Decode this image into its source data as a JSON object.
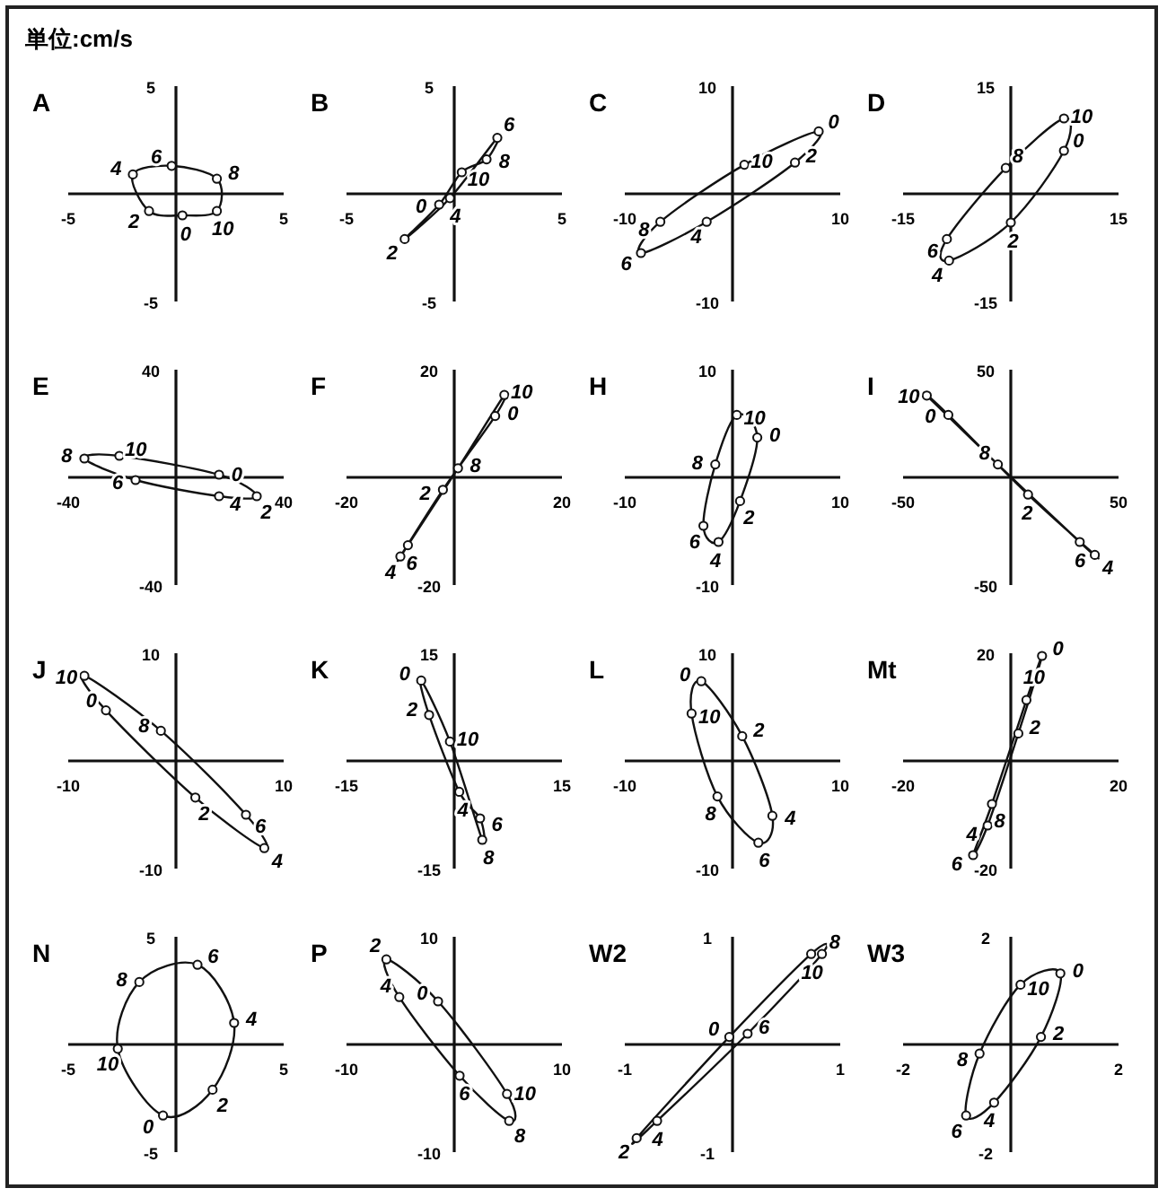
{
  "chart_data": [
    {
      "type": "scatter",
      "line_style": "solid",
      "title": "A",
      "xlim": [
        -5,
        5
      ],
      "ylim": [
        -5,
        5
      ],
      "xticks": [
        -5,
        5
      ],
      "yticks": [
        -5,
        5
      ],
      "marker": "circle",
      "x": [
        0.3,
        -1.25,
        -2,
        -0.2,
        1.9,
        1.9
      ],
      "values": [
        -1.0,
        -0.8,
        0.9,
        1.3,
        0.7,
        -0.8
      ],
      "annotations": [
        "単位:cm/s",
        {
          "text": "0",
          "x": 0.3,
          "y": -1.0
        },
        {
          "text": "2",
          "x": -1.25,
          "y": -0.8
        },
        {
          "text": "4",
          "x": -2,
          "y": 0.9
        },
        {
          "text": "6",
          "x": -0.2,
          "y": 1.3
        },
        {
          "text": "8",
          "x": 1.9,
          "y": 0.7
        },
        {
          "text": "10",
          "x": 1.9,
          "y": -0.8
        }
      ]
    },
    {
      "type": "scatter",
      "line_style": "solid",
      "title": "B",
      "xlim": [
        -5,
        5
      ],
      "ylim": [
        -5,
        5
      ],
      "xticks": [
        -5,
        5
      ],
      "yticks": [
        -5,
        5
      ],
      "marker": "circle",
      "x": [
        -0.7,
        -2.3,
        -0.2,
        2.0,
        1.5,
        0.35
      ],
      "values": [
        -0.5,
        -2.1,
        -0.2,
        2.6,
        1.6,
        1.0
      ],
      "annotations": [
        {
          "text": "0",
          "x": -0.7,
          "y": -0.5
        },
        {
          "text": "2",
          "x": -2.3,
          "y": -2.1
        },
        {
          "text": "4",
          "x": -0.2,
          "y": -0.2
        },
        {
          "text": "6",
          "x": 2.0,
          "y": 2.6
        },
        {
          "text": "8",
          "x": 1.5,
          "y": 1.6
        },
        {
          "text": "10",
          "x": 0.35,
          "y": 1.0
        }
      ]
    },
    {
      "type": "scatter",
      "line_style": "solid",
      "title": "C",
      "xlim": [
        -10,
        10
      ],
      "ylim": [
        -10,
        10
      ],
      "xticks": [
        -10,
        10
      ],
      "yticks": [
        -10,
        10
      ],
      "marker": "circle",
      "x": [
        8.0,
        5.8,
        -2.4,
        -8.5,
        -6.7,
        1.1
      ],
      "values": [
        5.8,
        2.9,
        -2.6,
        -5.5,
        -2.6,
        2.7
      ],
      "annotations": [
        {
          "text": "0",
          "x": 8.0,
          "y": 5.8
        },
        {
          "text": "2",
          "x": 5.8,
          "y": 2.9
        },
        {
          "text": "4",
          "x": -2.4,
          "y": -2.6
        },
        {
          "text": "6",
          "x": -8.5,
          "y": -5.5
        },
        {
          "text": "8",
          "x": -6.7,
          "y": -2.6
        },
        {
          "text": "10",
          "x": 1.1,
          "y": 2.7
        }
      ]
    },
    {
      "type": "scatter",
      "line_style": "solid",
      "title": "D",
      "xlim": [
        -15,
        15
      ],
      "ylim": [
        -15,
        15
      ],
      "xticks": [
        -15,
        15
      ],
      "yticks": [
        -15,
        15
      ],
      "marker": "circle",
      "x": [
        7.4,
        0,
        -8.6,
        -8.9,
        -0.7,
        7.4
      ],
      "values": [
        6.0,
        -4.0,
        -9.3,
        -6.3,
        3.6,
        10.5
      ],
      "annotations": [
        {
          "text": "0",
          "x": 7.4,
          "y": 6.0
        },
        {
          "text": "2",
          "x": 0,
          "y": -4.0
        },
        {
          "text": "4",
          "x": -8.6,
          "y": -9.3
        },
        {
          "text": "6",
          "x": -8.9,
          "y": -6.3
        },
        {
          "text": "8",
          "x": -0.7,
          "y": 3.6
        },
        {
          "text": "10",
          "x": 7.4,
          "y": 10.5
        }
      ]
    },
    {
      "type": "scatter",
      "line_style": "solid",
      "title": "E",
      "xlim": [
        -40,
        40
      ],
      "ylim": [
        -40,
        40
      ],
      "xticks": [
        -40,
        40
      ],
      "yticks": [
        -40,
        40
      ],
      "marker": "circle",
      "x": [
        16,
        30,
        16,
        -15,
        -34,
        -21
      ],
      "values": [
        1,
        -7,
        -7,
        -1,
        7,
        8
      ],
      "annotations": [
        {
          "text": "0",
          "x": 16,
          "y": 1
        },
        {
          "text": "2",
          "x": 30,
          "y": -7
        },
        {
          "text": "4",
          "x": 16,
          "y": -7
        },
        {
          "text": "6",
          "x": -15,
          "y": -1
        },
        {
          "text": "8",
          "x": -34,
          "y": 7
        },
        {
          "text": "10",
          "x": -21,
          "y": 8
        }
      ]
    },
    {
      "type": "scatter",
      "line_style": "solid",
      "title": "F",
      "xlim": [
        -20,
        20
      ],
      "ylim": [
        -20,
        20
      ],
      "xticks": [
        -20,
        20
      ],
      "yticks": [
        -20,
        20
      ],
      "marker": "circle",
      "x": [
        7.6,
        -2.1,
        -10,
        -8.6,
        0.7,
        9.3
      ],
      "values": [
        11.4,
        -2.3,
        -14.7,
        -12.6,
        1.7,
        15.3
      ],
      "annotations": [
        {
          "text": "0",
          "x": 7.6,
          "y": 11.4
        },
        {
          "text": "2",
          "x": -2.1,
          "y": -2.3
        },
        {
          "text": "4",
          "x": -10,
          "y": -14.7
        },
        {
          "text": "6",
          "x": -8.6,
          "y": -12.6
        },
        {
          "text": "8",
          "x": 0.7,
          "y": 1.7
        },
        {
          "text": "10",
          "x": 9.3,
          "y": 15.3
        }
      ]
    },
    {
      "type": "scatter",
      "line_style": "solid",
      "title": "H",
      "xlim": [
        -10,
        10
      ],
      "ylim": [
        -10,
        10
      ],
      "xticks": [
        -10,
        10
      ],
      "yticks": [
        -10,
        10
      ],
      "marker": "circle",
      "x": [
        2.3,
        0.7,
        -1.3,
        -2.7,
        -1.6,
        0.4
      ],
      "values": [
        3.7,
        -2.2,
        -6.0,
        -4.5,
        1.2,
        5.8
      ],
      "annotations": [
        {
          "text": "0",
          "x": 2.3,
          "y": 3.7
        },
        {
          "text": "2",
          "x": 0.7,
          "y": -2.2
        },
        {
          "text": "4",
          "x": -1.3,
          "y": -6.0
        },
        {
          "text": "6",
          "x": -2.7,
          "y": -4.5
        },
        {
          "text": "8",
          "x": -1.6,
          "y": 1.2
        },
        {
          "text": "10",
          "x": 0.4,
          "y": 5.8
        }
      ]
    },
    {
      "type": "scatter",
      "line_style": "solid",
      "title": "I",
      "xlim": [
        -50,
        50
      ],
      "ylim": [
        -50,
        50
      ],
      "xticks": [
        -50,
        50
      ],
      "yticks": [
        -50,
        50
      ],
      "marker": "circle",
      "x": [
        -29,
        8,
        39,
        32,
        -6,
        -39
      ],
      "values": [
        29,
        -8,
        -36,
        -30,
        6,
        38
      ],
      "annotations": [
        {
          "text": "0",
          "x": -29,
          "y": 29
        },
        {
          "text": "2",
          "x": 8,
          "y": -8
        },
        {
          "text": "4",
          "x": 39,
          "y": -36
        },
        {
          "text": "6",
          "x": 32,
          "y": -30
        },
        {
          "text": "8",
          "x": -6,
          "y": 6
        },
        {
          "text": "10",
          "x": -39,
          "y": 38
        }
      ]
    },
    {
      "type": "scatter",
      "line_style": "solid",
      "title": "J",
      "xlim": [
        -10,
        10
      ],
      "ylim": [
        -10,
        10
      ],
      "xticks": [
        -10,
        10
      ],
      "yticks": [
        -10,
        10
      ],
      "marker": "circle",
      "x": [
        -6.5,
        1.8,
        8.2,
        6.5,
        -1.4,
        -8.5
      ],
      "values": [
        4.7,
        -3.4,
        -8.1,
        -5.0,
        2.8,
        7.9
      ],
      "annotations": [
        {
          "text": "0",
          "x": -6.5,
          "y": 4.7
        },
        {
          "text": "2",
          "x": 1.8,
          "y": -3.4
        },
        {
          "text": "4",
          "x": 8.2,
          "y": -8.1
        },
        {
          "text": "6",
          "x": 6.5,
          "y": -5.0
        },
        {
          "text": "8",
          "x": -1.4,
          "y": 2.8
        },
        {
          "text": "10",
          "x": -8.5,
          "y": 7.9
        }
      ]
    },
    {
      "type": "scatter",
      "line_style": "solid",
      "title": "K",
      "xlim": [
        -15,
        15
      ],
      "ylim": [
        -15,
        15
      ],
      "xticks": [
        -15,
        15
      ],
      "yticks": [
        -15,
        15
      ],
      "marker": "circle",
      "x": [
        -4.6,
        -3.5,
        0.7,
        3.6,
        3.9,
        -0.6
      ],
      "values": [
        11.2,
        6.4,
        -4.3,
        -8.0,
        -11,
        2.7
      ],
      "annotations": [
        {
          "text": "0",
          "x": -4.6,
          "y": 11.2
        },
        {
          "text": "2",
          "x": -3.5,
          "y": 6.4
        },
        {
          "text": "4",
          "x": 0.7,
          "y": -4.3
        },
        {
          "text": "6",
          "x": 3.6,
          "y": -8.0
        },
        {
          "text": "8",
          "x": 3.9,
          "y": -11
        },
        {
          "text": "10",
          "x": -0.6,
          "y": 2.7
        }
      ]
    },
    {
      "type": "scatter",
      "line_style": "solid",
      "title": "L",
      "xlim": [
        -10,
        10
      ],
      "ylim": [
        -10,
        10
      ],
      "xticks": [
        -10,
        10
      ],
      "yticks": [
        -10,
        10
      ],
      "marker": "circle",
      "x": [
        -2.9,
        0.9,
        3.7,
        2.4,
        -1.4,
        -3.8
      ],
      "values": [
        7.4,
        2.3,
        -5.1,
        -7.6,
        -3.3,
        4.4
      ],
      "annotations": [
        {
          "text": "0",
          "x": -2.9,
          "y": 7.4
        },
        {
          "text": "2",
          "x": 0.9,
          "y": 2.3
        },
        {
          "text": "4",
          "x": 3.7,
          "y": -5.1
        },
        {
          "text": "6",
          "x": 2.4,
          "y": -7.6
        },
        {
          "text": "8",
          "x": -1.4,
          "y": -3.3
        },
        {
          "text": "10",
          "x": -3.8,
          "y": 4.4
        }
      ]
    },
    {
      "type": "scatter",
      "line_style": "solid",
      "title": "Mt",
      "xlim": [
        -20,
        20
      ],
      "ylim": [
        -20,
        20
      ],
      "xticks": [
        -20,
        20
      ],
      "yticks": [
        -20,
        20
      ],
      "marker": "circle",
      "x": [
        5.8,
        1.4,
        -4.3,
        -7,
        -3.5,
        2.9
      ],
      "values": [
        19.5,
        5.1,
        -12,
        -17.5,
        -8,
        11.3
      ],
      "annotations": [
        {
          "text": "0",
          "x": 5.8,
          "y": 19.5
        },
        {
          "text": "2",
          "x": 1.4,
          "y": 5.1
        },
        {
          "text": "4",
          "x": -4.3,
          "y": -12
        },
        {
          "text": "6",
          "x": -7,
          "y": -17.5
        },
        {
          "text": "8",
          "x": -3.5,
          "y": -8
        },
        {
          "text": "10",
          "x": 2.9,
          "y": 11.3
        }
      ]
    },
    {
      "type": "scatter",
      "line_style": "solid",
      "title": "N",
      "xlim": [
        -5,
        5
      ],
      "ylim": [
        -5,
        5
      ],
      "xticks": [
        -5,
        5
      ],
      "yticks": [
        -5,
        5
      ],
      "marker": "circle",
      "x": [
        -0.6,
        1.7,
        2.7,
        1.0,
        -1.7,
        -2.7
      ],
      "values": [
        -3.3,
        -2.1,
        1.0,
        3.7,
        2.9,
        -0.2
      ],
      "annotations": [
        {
          "text": "0",
          "x": -0.6,
          "y": -3.3
        },
        {
          "text": "2",
          "x": 1.7,
          "y": -2.1
        },
        {
          "text": "4",
          "x": 2.7,
          "y": 1.0
        },
        {
          "text": "6",
          "x": 1.0,
          "y": 3.7
        },
        {
          "text": "8",
          "x": -1.7,
          "y": 2.9
        },
        {
          "text": "10",
          "x": -2.7,
          "y": -0.2
        }
      ]
    },
    {
      "type": "scatter",
      "line_style": "solid",
      "title": "P",
      "xlim": [
        -10,
        10
      ],
      "ylim": [
        -10,
        10
      ],
      "xticks": [
        -10,
        10
      ],
      "yticks": [
        -10,
        10
      ],
      "marker": "circle",
      "x": [
        -1.5,
        -6.3,
        -5.1,
        0.5,
        5.1,
        4.9
      ],
      "values": [
        4.0,
        7.9,
        4.4,
        -2.9,
        -7.1,
        -4.6
      ],
      "annotations": [
        {
          "text": "0",
          "x": -1.5,
          "y": 4.0
        },
        {
          "text": "2",
          "x": -6.3,
          "y": 7.9
        },
        {
          "text": "4",
          "x": -5.1,
          "y": 4.4
        },
        {
          "text": "6",
          "x": 0.5,
          "y": -2.9
        },
        {
          "text": "8",
          "x": 5.1,
          "y": -7.1
        },
        {
          "text": "10",
          "x": 4.9,
          "y": -4.6
        }
      ]
    },
    {
      "type": "scatter",
      "line_style": "solid",
      "title": "W2",
      "xlim": [
        -1,
        1
      ],
      "ylim": [
        -1,
        1
      ],
      "xticks": [
        -1,
        1
      ],
      "yticks": [
        -1,
        1
      ],
      "marker": "circle",
      "x": [
        -0.03,
        -0.89,
        -0.7,
        0.14,
        0.83,
        0.73
      ],
      "values": [
        0.07,
        -0.87,
        -0.71,
        0.1,
        0.84,
        0.84
      ],
      "annotations": [
        {
          "text": "0",
          "x": -0.03,
          "y": 0.07
        },
        {
          "text": "2",
          "x": -0.89,
          "y": -0.87
        },
        {
          "text": "4",
          "x": -0.7,
          "y": -0.71
        },
        {
          "text": "6",
          "x": 0.14,
          "y": 0.1
        },
        {
          "text": "8",
          "x": 0.83,
          "y": 0.84
        },
        {
          "text": "10",
          "x": 0.73,
          "y": 0.84
        }
      ]
    },
    {
      "type": "scatter",
      "line_style": "solid",
      "title": "W3",
      "xlim": [
        -2,
        2
      ],
      "ylim": [
        -2,
        2
      ],
      "xticks": [
        -2,
        2
      ],
      "yticks": [
        -2,
        2
      ],
      "marker": "circle",
      "x": [
        0.92,
        0.56,
        -0.31,
        -0.83,
        -0.58,
        0.18
      ],
      "values": [
        1.32,
        0.14,
        -1.08,
        -1.32,
        -0.17,
        1.11
      ],
      "annotations": [
        {
          "text": "0",
          "x": 0.92,
          "y": 1.32
        },
        {
          "text": "2",
          "x": 0.56,
          "y": 0.14
        },
        {
          "text": "4",
          "x": -0.31,
          "y": -1.08
        },
        {
          "text": "6",
          "x": -0.83,
          "y": -1.32
        },
        {
          "text": "8",
          "x": -0.58,
          "y": -0.17
        },
        {
          "text": "10",
          "x": 0.18,
          "y": 1.11
        }
      ]
    }
  ]
}
